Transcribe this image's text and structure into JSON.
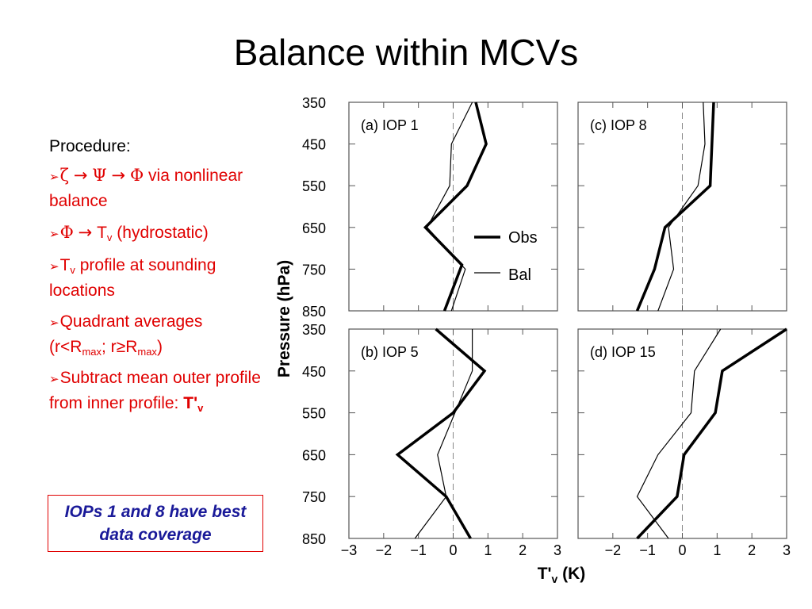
{
  "slide": {
    "title": "Balance within MCVs",
    "procedure_label": "Procedure:",
    "bullet_marker": "➢",
    "bullets": {
      "b1_zeta": "ζ",
      "b1_arrow1": "→",
      "b1_psi": "Ψ",
      "b1_arrow2": "→",
      "b1_phi": "Φ",
      "b1_text": "via nonlinear balance",
      "b2_phi": "Φ",
      "b2_arrow": "→",
      "b2_T": "T",
      "b2_sub": "v",
      "b2_text": "(hydrostatic)",
      "b3_T": "T",
      "b3_sub": "v",
      "b3_text": "profile at sounding locations",
      "b4_text": "Quadrant averages (r",
      "b4_lt": "<",
      "b4_R1": "R",
      "b4_sub1": "max",
      "b4_sep": "; r",
      "b4_ge": "≥",
      "b4_R2": "R",
      "b4_sub2": "max",
      "b4_close": ")",
      "b5_text": "Subtract mean outer profile from inner profile:",
      "b5_T": "T'",
      "b5_sub": "v"
    },
    "note": "IOPs 1 and 8 have best data coverage"
  },
  "chart_data": {
    "type": "line",
    "ylabel": "Pressure (hPa)",
    "xlabel": "T'v (K)",
    "xlabel_main": "T'",
    "xlabel_sub": "v",
    "xlabel_unit": "(K)",
    "xlim": [
      -3,
      3
    ],
    "ylim": [
      850,
      350
    ],
    "y_inverted": true,
    "yticks": [
      350,
      450,
      550,
      650,
      750,
      850
    ],
    "xticks": [
      -3,
      -2,
      -1,
      0,
      1,
      2,
      3
    ],
    "xtick_labels": [
      "−3",
      "−2",
      "−1",
      "0",
      "1",
      "2",
      "3"
    ],
    "grid": false,
    "zero_line": "dashed",
    "legend": {
      "placement": "between panels",
      "entries": [
        {
          "label": "Obs",
          "style": "thick"
        },
        {
          "label": "Bal",
          "style": "thin"
        }
      ]
    },
    "panels": [
      {
        "label": "(a) IOP 1",
        "series": [
          {
            "name": "Obs",
            "points": [
              [
                0.65,
                350
              ],
              [
                0.95,
                450
              ],
              [
                0.4,
                550
              ],
              [
                -0.8,
                650
              ],
              [
                0.25,
                740
              ],
              [
                -0.25,
                850
              ]
            ]
          },
          {
            "name": "Bal",
            "points": [
              [
                0.55,
                350
              ],
              [
                -0.05,
                450
              ],
              [
                -0.1,
                550
              ],
              [
                -0.75,
                650
              ],
              [
                0.35,
                750
              ],
              [
                -0.05,
                850
              ]
            ]
          }
        ]
      },
      {
        "label": "(c) IOP 8",
        "series": [
          {
            "name": "Obs",
            "points": [
              [
                0.9,
                350
              ],
              [
                0.8,
                550
              ],
              [
                -0.5,
                650
              ],
              [
                -0.8,
                750
              ],
              [
                -1.3,
                850
              ]
            ]
          },
          {
            "name": "Bal",
            "points": [
              [
                0.6,
                350
              ],
              [
                0.65,
                450
              ],
              [
                0.45,
                550
              ],
              [
                -0.4,
                650
              ],
              [
                -0.25,
                750
              ],
              [
                -0.7,
                850
              ]
            ]
          }
        ]
      },
      {
        "label": "(b) IOP 5",
        "series": [
          {
            "name": "Obs",
            "points": [
              [
                -0.5,
                350
              ],
              [
                0.9,
                450
              ],
              [
                0.0,
                550
              ],
              [
                -1.6,
                650
              ],
              [
                -0.2,
                750
              ],
              [
                0.5,
                850
              ]
            ]
          },
          {
            "name": "Bal",
            "points": [
              [
                0.55,
                350
              ],
              [
                0.55,
                450
              ],
              [
                0.05,
                550
              ],
              [
                -0.45,
                650
              ],
              [
                -0.2,
                750
              ],
              [
                -1.1,
                850
              ]
            ]
          }
        ]
      },
      {
        "label": "(d) IOP 15",
        "series": [
          {
            "name": "Obs",
            "points": [
              [
                3.0,
                350
              ],
              [
                1.15,
                450
              ],
              [
                0.95,
                550
              ],
              [
                0.05,
                650
              ],
              [
                -0.15,
                750
              ],
              [
                -1.3,
                850
              ]
            ]
          },
          {
            "name": "Bal",
            "points": [
              [
                1.1,
                350
              ],
              [
                0.35,
                450
              ],
              [
                0.25,
                550
              ],
              [
                -0.7,
                650
              ],
              [
                -1.3,
                750
              ],
              [
                -0.4,
                850
              ]
            ]
          }
        ]
      }
    ]
  }
}
